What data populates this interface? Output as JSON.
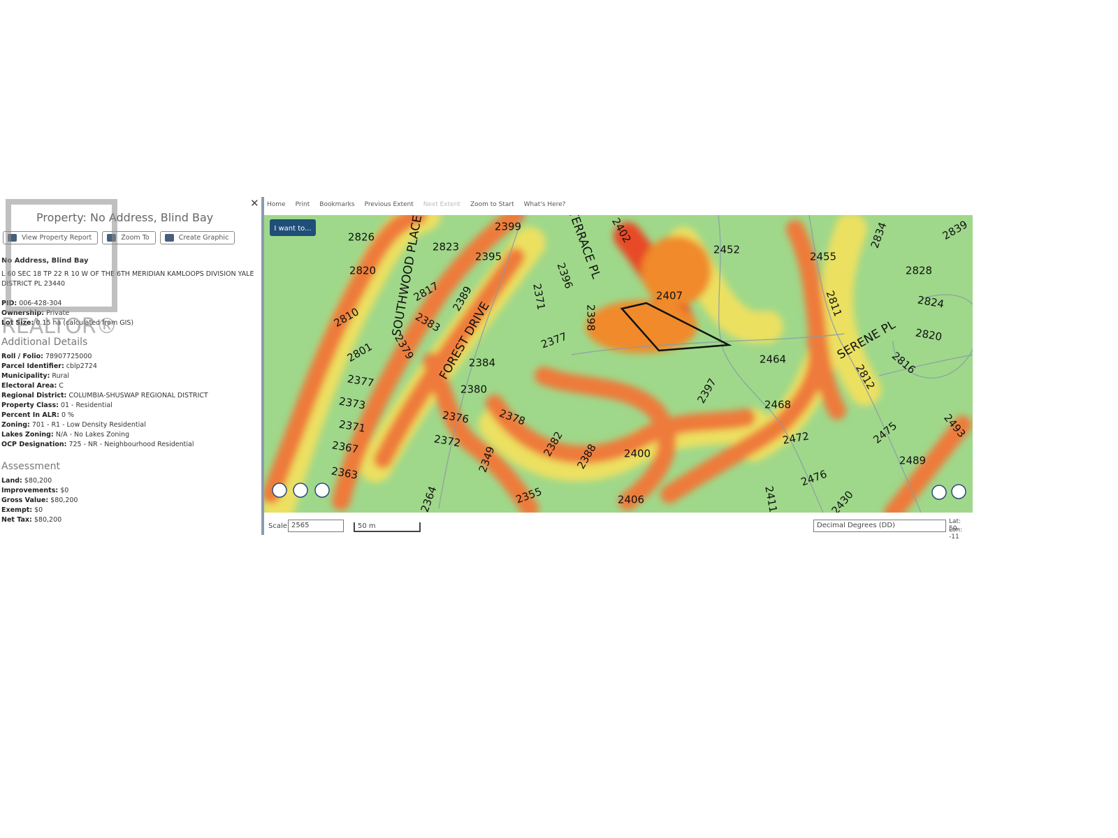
{
  "panel": {
    "title": "Property: No Address, Blind Bay",
    "buttons": [
      "View Property Report",
      "Zoom To",
      "Create Graphic"
    ],
    "address": "No Address, Blind Bay",
    "legal": "L 60 SEC 18 TP 22 R 10 W OF THE 6TH MERIDIAN KAMLOOPS DIVISION YALE DISTRICT PL 23440",
    "fields": [
      {
        "label": "PID:",
        "value": "006-428-304"
      },
      {
        "label": "Ownership:",
        "value": "Private"
      },
      {
        "label": "Lot Size:",
        "value": "0.15 ha (calculated from GIS)"
      }
    ],
    "details_heading": "Additional Details",
    "details": [
      {
        "label": "Roll / Folio:",
        "value": "78907725000"
      },
      {
        "label": "Parcel Identifier:",
        "value": "cblp2724"
      },
      {
        "label": "Municipality:",
        "value": "Rural"
      },
      {
        "label": "Electoral Area:",
        "value": "C"
      },
      {
        "label": "Regional District:",
        "value": "COLUMBIA-SHUSWAP REGIONAL DISTRICT"
      },
      {
        "label": "Property Class:",
        "value": "01 - Residential"
      },
      {
        "label": "Percent In ALR:",
        "value": "0 %"
      },
      {
        "label": "Zoning:",
        "value": "701 - R1 - Low Density Residential"
      },
      {
        "label": "Lakes Zoning:",
        "value": "N/A - No Lakes Zoning"
      },
      {
        "label": "OCP Designation:",
        "value": "725 - NR - Neighbourhood Residential"
      }
    ],
    "assessment_heading": "Assessment",
    "assessment": [
      {
        "label": "Land:",
        "value": "$80,200"
      },
      {
        "label": "Improvements:",
        "value": "$0"
      },
      {
        "label": "Gross Value:",
        "value": "$80,200"
      },
      {
        "label": "Exempt:",
        "value": "$0"
      },
      {
        "label": "Net Tax:",
        "value": "$80,200"
      }
    ]
  },
  "watermark": "REALTOR®",
  "toolbar": [
    "Home",
    "Print",
    "Bookmarks",
    "Previous Extent",
    "Next Extent",
    "Zoom to Start",
    "What's Here?"
  ],
  "map": {
    "menu_button": "I want to...",
    "labels": [
      "2826",
      "2823",
      "2399",
      "2395",
      "2820",
      "2817",
      "2389",
      "2810",
      "2383",
      "2801",
      "2379",
      "2377",
      "2373",
      "2371",
      "2367",
      "2363",
      "2384",
      "2380",
      "2376",
      "2372",
      "2378",
      "2349",
      "2382",
      "2388",
      "2400",
      "2355",
      "2364",
      "2406",
      "2371",
      "2396",
      "2402",
      "2398",
      "2377",
      "2407",
      "2452",
      "2455",
      "2834",
      "2839",
      "2828",
      "2811",
      "2824",
      "2820",
      "2816",
      "2812",
      "2464",
      "2397",
      "2468",
      "2472",
      "2475",
      "2493",
      "2489",
      "2476",
      "2411",
      "2430",
      "SOUTHWOOD PLACE",
      "TERRACE PL",
      "FOREST DRIVE",
      "SERENE PL"
    ]
  },
  "footer": {
    "scale_label": "Scale",
    "scale": "2565",
    "scale_bar": "50 m",
    "coordinate_system": "Decimal Degrees (DD)",
    "lat": "Lat: 50.",
    "lon": "Lon: -11"
  }
}
